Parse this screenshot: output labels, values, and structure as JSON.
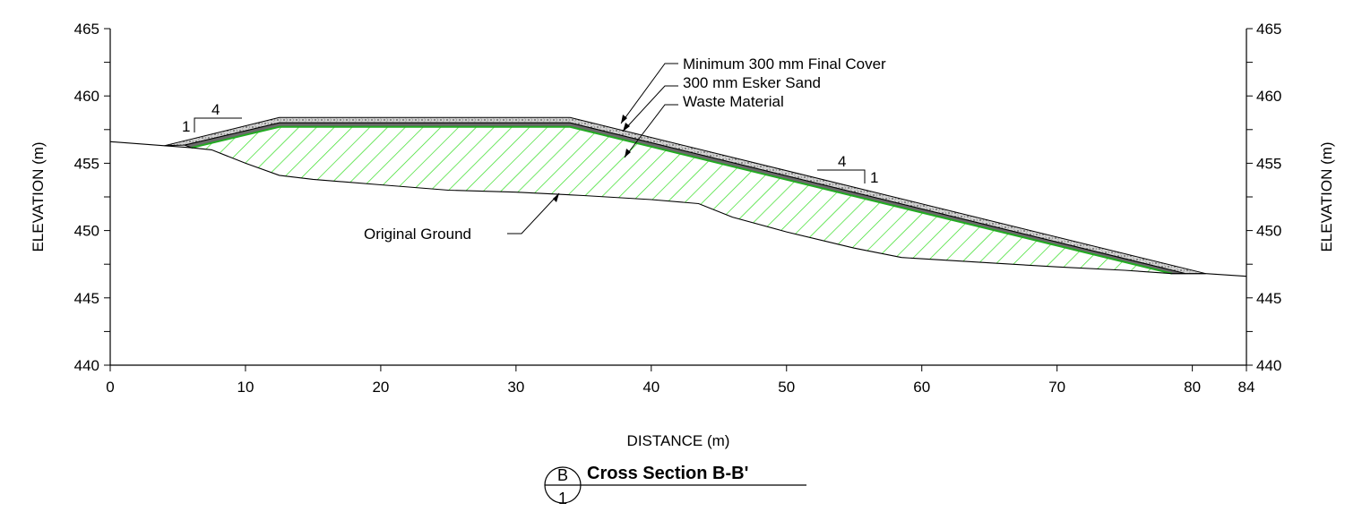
{
  "chart_data": {
    "type": "cross-section",
    "xlabel": "DISTANCE (m)",
    "ylabel_left": "ELEVATION (m)",
    "ylabel_right": "ELEVATION (m)",
    "xlim": [
      0,
      84
    ],
    "ylim": [
      440,
      465
    ],
    "x_ticks": [
      0,
      10,
      20,
      30,
      40,
      50,
      60,
      70,
      80,
      84
    ],
    "y_ticks": [
      440,
      445,
      450,
      455,
      460,
      465
    ],
    "grid": false,
    "original_ground": [
      [
        0,
        456.6
      ],
      [
        4,
        456.3
      ],
      [
        6,
        456.15
      ],
      [
        7.5,
        456.0
      ],
      [
        10,
        455.0
      ],
      [
        12.5,
        454.1
      ],
      [
        15,
        453.8
      ],
      [
        20,
        453.4
      ],
      [
        25,
        453.0
      ],
      [
        30,
        452.85
      ],
      [
        35,
        452.6
      ],
      [
        40,
        452.3
      ],
      [
        43.5,
        452.0
      ],
      [
        46,
        451.0
      ],
      [
        50,
        449.9
      ],
      [
        55,
        448.7
      ],
      [
        58.5,
        448.0
      ],
      [
        65,
        447.6
      ],
      [
        70,
        447.3
      ],
      [
        75,
        447.05
      ],
      [
        78.5,
        446.8
      ],
      [
        81,
        446.8
      ],
      [
        84,
        446.6
      ]
    ],
    "waste_top": [
      [
        6,
        456.15
      ],
      [
        12.5,
        457.7
      ],
      [
        34,
        457.7
      ],
      [
        78.5,
        446.8
      ]
    ],
    "sand_top": [
      [
        5.5,
        456.35
      ],
      [
        12.5,
        458.0
      ],
      [
        34,
        458.0
      ],
      [
        79.5,
        446.8
      ]
    ],
    "cover_top": [
      [
        4,
        456.3
      ],
      [
        12.5,
        458.4
      ],
      [
        34,
        458.4
      ],
      [
        81,
        446.8
      ]
    ],
    "colors": {
      "waste_hatch": "#33dd22",
      "waste_edge": "#22aa22",
      "line": "#000000",
      "cover_fill": "#d2d2d2"
    }
  },
  "annotations": {
    "final_cover": "Minimum 300 mm Final Cover",
    "esker_sand": "300 mm Esker Sand",
    "waste_material": "Waste Material",
    "original_ground": "Original Ground"
  },
  "slope_left": {
    "rise": "1",
    "run": "4"
  },
  "slope_right": {
    "rise": "1",
    "run": "4"
  },
  "title": {
    "text": "Cross Section B-B'",
    "section_letter": "B",
    "sheet_number": "1"
  }
}
